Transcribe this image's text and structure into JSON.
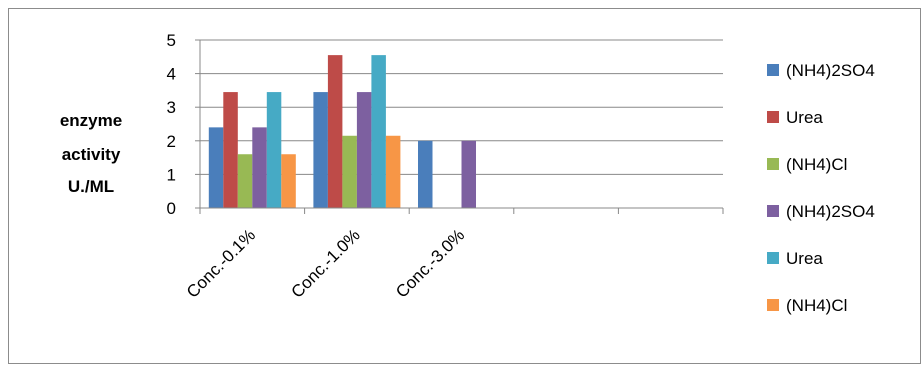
{
  "chart_data": {
    "type": "bar",
    "title": "",
    "ylabel_lines": [
      "enzyme",
      "activity",
      "U./ML"
    ],
    "xlabel": "",
    "ylim": [
      0,
      5
    ],
    "yticks": [
      0,
      1,
      2,
      3,
      4,
      5
    ],
    "categories": [
      "Conc.-0.1%",
      "Conc.-1.0%",
      "Conc.-3.0%",
      "",
      ""
    ],
    "grid": "horizontal",
    "legend_position": "right",
    "series": [
      {
        "name": "(NH4)2SO4",
        "color": "#4A7EBB",
        "values": [
          2.4,
          3.45,
          2.0,
          null,
          null
        ]
      },
      {
        "name": "Urea",
        "color": "#BE4B48",
        "values": [
          3.45,
          4.55,
          null,
          null,
          null
        ]
      },
      {
        "name": "(NH4)Cl",
        "color": "#98B954",
        "values": [
          1.6,
          2.15,
          null,
          null,
          null
        ]
      },
      {
        "name": "(NH4)2SO4",
        "color": "#7D60A0",
        "values": [
          2.4,
          3.45,
          2.0,
          null,
          null
        ]
      },
      {
        "name": "Urea",
        "color": "#46AAC5",
        "values": [
          3.45,
          4.55,
          null,
          null,
          null
        ]
      },
      {
        "name": "(NH4)Cl",
        "color": "#F79646",
        "values": [
          1.6,
          2.15,
          null,
          null,
          null
        ]
      }
    ]
  }
}
